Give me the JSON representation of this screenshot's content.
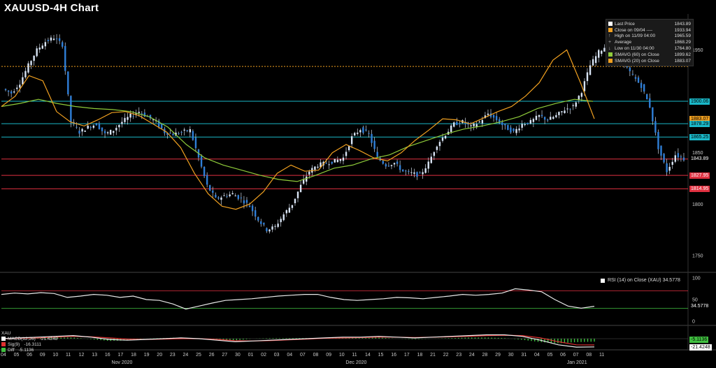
{
  "title": "XAUUSD-4H Chart",
  "legend": [
    {
      "label": "Last Price",
      "value": "1843.89",
      "color": "#ffffff",
      "icon": "square"
    },
    {
      "label": "Close on 09/04 ----",
      "value": "1933.94",
      "color": "#f0a020",
      "icon": "square"
    },
    {
      "label": "High on 11/09 04:00",
      "value": "1965.59",
      "color": "#aaaaaa",
      "icon": "up-arrow"
    },
    {
      "label": "Average",
      "value": "1868.29",
      "color": "#aaaaaa",
      "icon": "plus"
    },
    {
      "label": "Low on 11/30 04:00",
      "value": "1764.80",
      "color": "#aaaaaa",
      "icon": "down-arrow"
    },
    {
      "label": "SMAVG (60)  on Close",
      "value": "1899.62",
      "color": "#8fcc3a",
      "icon": "square"
    },
    {
      "label": "SMAVG (20)  on Close",
      "value": "1883.07",
      "color": "#f0a020",
      "icon": "square"
    }
  ],
  "rsi_label": "RSI (14)  on Close (XAU) 34.5778",
  "macd_legend": {
    "name": "XAU",
    "rows": [
      {
        "label": "MACD(12,26)",
        "value": "-21.4248",
        "color": "#ffffff"
      },
      {
        "label": "Sig(9)",
        "value": "-16.3111",
        "color": "#e03030"
      },
      {
        "label": "Diff",
        "value": "-5.1136",
        "color": "#40c040"
      }
    ]
  },
  "price_tags": [
    {
      "text": "1900.06",
      "bg": "#1ab8c8",
      "fg": "#000000",
      "price": 1900.06
    },
    {
      "text": "1883.07",
      "bg": "#f0a020",
      "fg": "#000000",
      "price": 1883.07
    },
    {
      "text": "1878.29",
      "bg": "#1ab8c8",
      "fg": "#000000",
      "price": 1878.29
    },
    {
      "text": "1865.25",
      "bg": "#1ab8c8",
      "fg": "#000000",
      "price": 1865.25
    },
    {
      "text": "1843.89",
      "bg": "#000000",
      "fg": "#ffffff",
      "price": 1843.89
    },
    {
      "text": "1827.95",
      "bg": "#e03040",
      "fg": "#ffffff",
      "price": 1827.95
    },
    {
      "text": "1814.95",
      "bg": "#e03040",
      "fg": "#ffffff",
      "price": 1814.95
    }
  ],
  "rsi_tag": "34.5778",
  "macd_tags": [
    {
      "text": "-5.1136",
      "bg": "#40c040",
      "fg": "#000000"
    },
    {
      "text": "-21.4248",
      "bg": "#ffffff",
      "fg": "#000000"
    }
  ],
  "colors": {
    "candle": "#2f7fd8",
    "sma20": "#f0a020",
    "sma60": "#8fcc3a",
    "cyan": "#1ab8c8",
    "red": "#e03040",
    "close_dotted": "#f0a020"
  },
  "chart_data": {
    "type": "line",
    "title": "XAUUSD-4H Chart",
    "price_axis": {
      "ticks": [
        1950,
        1900,
        1850,
        1800,
        1750
      ],
      "ylim": [
        1735,
        1985
      ]
    },
    "rsi_axis": {
      "ticks": [
        100,
        50,
        0
      ],
      "ylim": [
        0,
        100
      ],
      "overbought": 70,
      "oversold": 30
    },
    "macd_axis": {
      "ticks": [
        0
      ]
    },
    "horizontal_lines": [
      {
        "price": 1933.94,
        "style": "dotted",
        "color": "#f0a020"
      },
      {
        "price": 1900.06,
        "color": "#1ab8c8"
      },
      {
        "price": 1878.29,
        "color": "#1ab8c8"
      },
      {
        "price": 1865.25,
        "color": "#1ab8c8"
      },
      {
        "price": 1843.89,
        "color": "#e03040"
      },
      {
        "price": 1827.95,
        "color": "#e03040"
      },
      {
        "price": 1814.95,
        "color": "#e03040"
      }
    ],
    "x_day_labels": [
      "04",
      "05",
      "06",
      "09",
      "10",
      "11",
      "12",
      "13",
      "16",
      "17",
      "18",
      "19",
      "20",
      "23",
      "24",
      "25",
      "26",
      "27",
      "30",
      "01",
      "02",
      "03",
      "04",
      "07",
      "08",
      "09",
      "10",
      "11",
      "14",
      "15",
      "16",
      "17",
      "18",
      "21",
      "22",
      "23",
      "24",
      "28",
      "29",
      "30",
      "31",
      "04",
      "05",
      "06",
      "07",
      "08",
      "11"
    ],
    "x_month_labels": [
      {
        "label": "Nov 2020",
        "at_day_index": 9
      },
      {
        "label": "Dec 2020",
        "at_day_index": 27
      },
      {
        "label": "Jan 2021",
        "at_day_index": 44
      }
    ],
    "close_path": [
      1912,
      1908,
      1918,
      1935,
      1950,
      1958,
      1962,
      1955,
      1880,
      1870,
      1875,
      1878,
      1868,
      1872,
      1880,
      1886,
      1890,
      1885,
      1880,
      1870,
      1868,
      1870,
      1872,
      1845,
      1818,
      1805,
      1808,
      1810,
      1805,
      1798,
      1785,
      1775,
      1778,
      1790,
      1800,
      1818,
      1832,
      1838,
      1840,
      1842,
      1845,
      1865,
      1873,
      1868,
      1845,
      1838,
      1840,
      1832,
      1830,
      1828,
      1840,
      1858,
      1868,
      1878,
      1880,
      1875,
      1880,
      1888,
      1882,
      1875,
      1870,
      1878,
      1880,
      1886,
      1882,
      1886,
      1892,
      1895,
      1910,
      1935,
      1948,
      1955,
      1958,
      1935,
      1925,
      1915,
      1895,
      1855,
      1832,
      1848,
      1844
    ],
    "sma20_path": [
      1895,
      1905,
      1925,
      1920,
      1890,
      1880,
      1876,
      1882,
      1889,
      1890,
      1886,
      1878,
      1870,
      1855,
      1830,
      1810,
      1798,
      1795,
      1800,
      1812,
      1830,
      1838,
      1832,
      1833,
      1850,
      1858,
      1852,
      1845,
      1842,
      1850,
      1862,
      1872,
      1883,
      1882,
      1878,
      1884,
      1890,
      1895,
      1905,
      1918,
      1940,
      1950,
      1918,
      1883
    ],
    "sma60_path": [
      1895,
      1898,
      1902,
      1898,
      1895,
      1893,
      1892,
      1890,
      1885,
      1875,
      1858,
      1845,
      1838,
      1833,
      1828,
      1824,
      1822,
      1828,
      1835,
      1838,
      1844,
      1848,
      1856,
      1862,
      1868,
      1873,
      1876,
      1880,
      1885,
      1893,
      1898,
      1902,
      1900
    ],
    "rsi_path": [
      62,
      65,
      63,
      66,
      64,
      55,
      58,
      62,
      60,
      55,
      58,
      50,
      48,
      40,
      28,
      35,
      42,
      48,
      50,
      52,
      55,
      58,
      60,
      62,
      62,
      55,
      50,
      48,
      50,
      52,
      55,
      54,
      52,
      55,
      58,
      62,
      60,
      62,
      65,
      75,
      72,
      68,
      50,
      35,
      30,
      34.58
    ],
    "macd_path": [
      0,
      2,
      4,
      6,
      8,
      4,
      -2,
      -4,
      -2,
      0,
      2,
      0,
      -4,
      -8,
      -6,
      -4,
      -2,
      0,
      2,
      4,
      4,
      6,
      4,
      2,
      4,
      6,
      8,
      10,
      10,
      6,
      -4,
      -16,
      -22,
      -21.42
    ],
    "signal_path": [
      0,
      1,
      2,
      4,
      6,
      5,
      2,
      -1,
      -2,
      -1,
      0,
      0,
      -2,
      -5,
      -6,
      -5,
      -3,
      -1,
      1,
      2,
      3,
      4,
      4,
      3,
      4,
      5,
      6,
      8,
      9,
      8,
      2,
      -8,
      -16,
      -16.31
    ]
  }
}
